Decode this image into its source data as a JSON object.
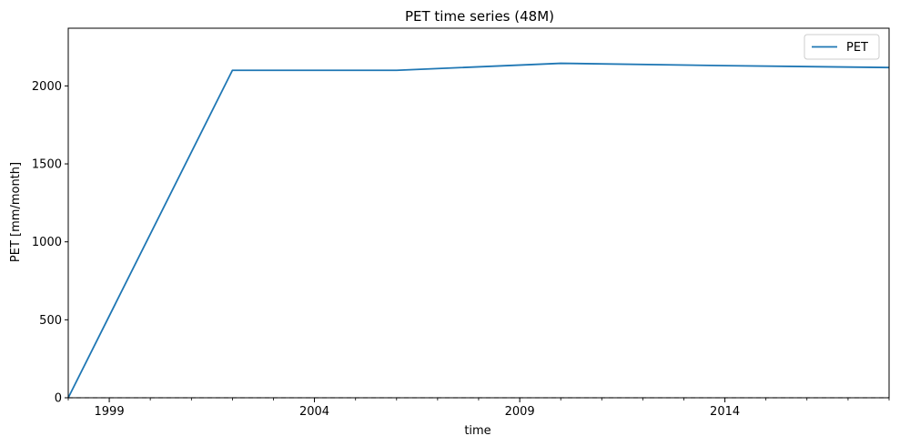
{
  "chart_data": {
    "type": "line",
    "title": "PET time series (48M)",
    "xlabel": "time",
    "ylabel": "PET [mm/month]",
    "x_axis": {
      "kind": "date",
      "range": [
        "1998-01-01",
        "2018-01-01"
      ],
      "major_ticks": [
        "1999",
        "2004",
        "2009",
        "2014"
      ]
    },
    "y_axis": {
      "range": [
        0,
        2370
      ],
      "ticks": [
        0,
        500,
        1000,
        1500,
        2000
      ]
    },
    "grid": false,
    "legend": {
      "position": "top-right"
    },
    "series": [
      {
        "name": "PET",
        "color": "#1f77b4",
        "x": [
          "1998-01-01",
          "2002-01-01",
          "2006-01-01",
          "2010-01-01",
          "2014-01-01",
          "2018-01-01"
        ],
        "y": [
          0,
          2100,
          2100,
          2145,
          2130,
          2118
        ]
      }
    ],
    "reference_lines": [
      {
        "axis": "y",
        "value": 0,
        "color": "#999999",
        "style": "dashed"
      }
    ]
  }
}
